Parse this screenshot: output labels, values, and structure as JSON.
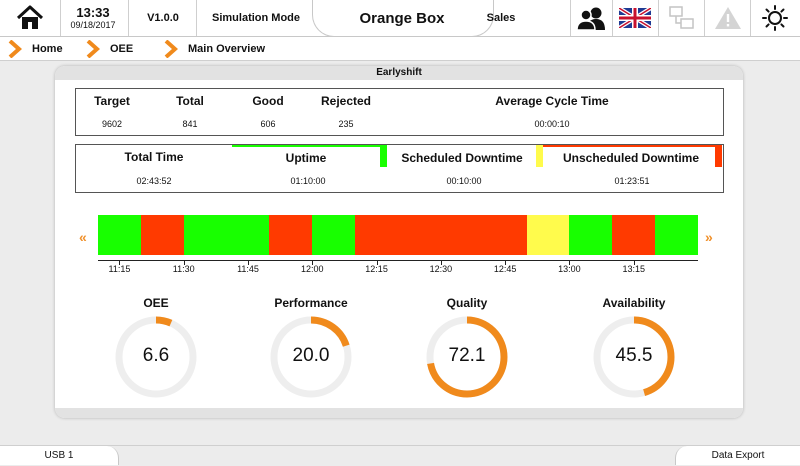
{
  "header": {
    "time": "13:33",
    "date": "09/18/2017",
    "version": "V1.0.0",
    "mode": "Simulation Mode",
    "title": "Orange Box",
    "user": "Sales"
  },
  "breadcrumb": [
    "Home",
    "OEE",
    "Main Overview"
  ],
  "shift": "Earlyshift",
  "counts": {
    "labels": [
      "Target",
      "Total",
      "Good",
      "Rejected",
      "Average Cycle Time"
    ],
    "values": [
      "9602",
      "841",
      "606",
      "235",
      "00:00:10"
    ]
  },
  "times": {
    "labels": [
      "Total Time",
      "Uptime",
      "Scheduled Downtime",
      "Unscheduled Downtime"
    ],
    "values": [
      "02:43:52",
      "01:10:00",
      "00:10:00",
      "01:23:51"
    ]
  },
  "timeline": {
    "segments": [
      {
        "state": "up",
        "min": 10
      },
      {
        "state": "unscheduled",
        "min": 10
      },
      {
        "state": "up",
        "min": 20
      },
      {
        "state": "unscheduled",
        "min": 10
      },
      {
        "state": "up",
        "min": 10
      },
      {
        "state": "unscheduled",
        "min": 40
      },
      {
        "state": "scheduled",
        "min": 10
      },
      {
        "state": "up",
        "min": 10
      },
      {
        "state": "unscheduled",
        "min": 10
      },
      {
        "state": "up",
        "min": 10
      }
    ],
    "ticks": [
      "11:15",
      "11:30",
      "11:45",
      "12:00",
      "12:15",
      "12:30",
      "12:45",
      "13:00",
      "13:15"
    ]
  },
  "kpis": [
    {
      "name": "OEE",
      "value": "6.6",
      "pct": 6.6
    },
    {
      "name": "Performance",
      "value": "20.0",
      "pct": 20.0
    },
    {
      "name": "Quality",
      "value": "72.1",
      "pct": 72.1
    },
    {
      "name": "Availability",
      "value": "45.5",
      "pct": 45.5
    }
  ],
  "footer": {
    "left": "USB 1",
    "right": "Data Export"
  },
  "colors": {
    "uptime": "#18ff00",
    "scheduled": "#fffb4c",
    "unscheduled": "#ff3a00",
    "accent": "#f08a1c",
    "track": "#eeeeee"
  },
  "icons": [
    "home-icon",
    "users-icon",
    "uk-flag-icon",
    "network-icon",
    "warning-icon",
    "brightness-icon",
    "chevron-right-icon",
    "double-chevron-left-icon",
    "double-chevron-right-icon"
  ]
}
